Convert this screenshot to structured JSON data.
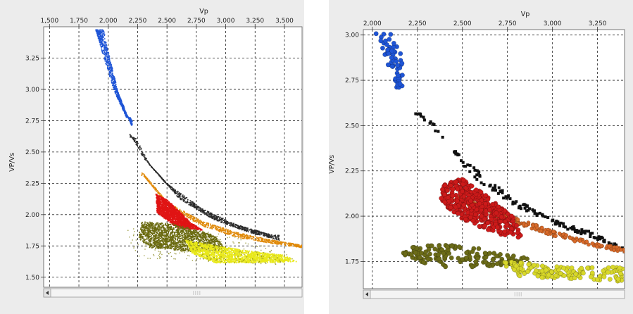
{
  "chart_data": [
    {
      "type": "scatter",
      "title": "",
      "xlabel": "Vp",
      "ylabel": "VP/Vs",
      "xlim": [
        1450,
        3650
      ],
      "ylim": [
        1.42,
        3.5
      ],
      "xticks": [
        "1,500",
        "1,750",
        "2,000",
        "2,250",
        "2,500",
        "2,750",
        "3,000",
        "3,250",
        "3,500"
      ],
      "yticks": [
        "1.50",
        "1.75",
        "2.00",
        "2.25",
        "2.50",
        "2.75",
        "3.00",
        "3.25"
      ],
      "xtick_values": [
        1500,
        1750,
        2000,
        2250,
        2500,
        2750,
        3000,
        3250,
        3500
      ],
      "ytick_values": [
        1.5,
        1.75,
        2.0,
        2.25,
        2.5,
        2.75,
        3.0,
        3.25
      ],
      "grid": true,
      "series": [
        {
          "color": "#1f55d6",
          "kind": "band",
          "upper": [
            [
              1890,
              3.48
            ],
            [
              1960,
              3.25
            ],
            [
              2050,
              2.98
            ],
            [
              2150,
              2.78
            ]
          ],
          "lower": [
            [
              1955,
              3.48
            ],
            [
              2010,
              3.25
            ],
            [
              2080,
              2.98
            ],
            [
              2200,
              2.7
            ]
          ]
        },
        {
          "color": "#2a2a2a",
          "kind": "band",
          "upper": [
            [
              2180,
              2.65
            ],
            [
              2300,
              2.45
            ],
            [
              2500,
              2.25
            ],
            [
              2800,
              2.05
            ],
            [
              3100,
              1.92
            ],
            [
              3400,
              1.84
            ]
          ],
          "lower": [
            [
              2230,
              2.62
            ],
            [
              2350,
              2.4
            ],
            [
              2600,
              2.13
            ],
            [
              2900,
              1.96
            ],
            [
              3200,
              1.86
            ],
            [
              3450,
              1.8
            ]
          ]
        },
        {
          "color": "#e08a0a",
          "kind": "band",
          "upper": [
            [
              2280,
              2.35
            ],
            [
              2500,
              2.1
            ],
            [
              2800,
              1.95
            ],
            [
              3100,
              1.86
            ],
            [
              3400,
              1.8
            ],
            [
              3650,
              1.76
            ]
          ],
          "lower": [
            [
              2300,
              2.31
            ],
            [
              2520,
              2.06
            ],
            [
              2800,
              1.91
            ],
            [
              3100,
              1.82
            ],
            [
              3400,
              1.77
            ],
            [
              3650,
              1.74
            ]
          ]
        },
        {
          "color": "#e01414",
          "kind": "poly",
          "polygon": [
            [
              2400,
              2.17
            ],
            [
              2500,
              2.12
            ],
            [
              2700,
              1.94
            ],
            [
              2800,
              1.88
            ],
            [
              2580,
              1.9
            ],
            [
              2410,
              2.02
            ]
          ]
        },
        {
          "color": "#6b6b12",
          "kind": "poly",
          "polygon": [
            [
              2280,
              1.95
            ],
            [
              2550,
              1.93
            ],
            [
              2900,
              1.84
            ],
            [
              3000,
              1.72
            ],
            [
              2700,
              1.71
            ],
            [
              2350,
              1.74
            ],
            [
              2250,
              1.82
            ]
          ]
        },
        {
          "color": "#e8e81a",
          "kind": "poly",
          "polygon": [
            [
              2650,
              1.8
            ],
            [
              3150,
              1.72
            ],
            [
              3500,
              1.68
            ],
            [
              3600,
              1.63
            ],
            [
              3300,
              1.62
            ],
            [
              2900,
              1.62
            ],
            [
              2700,
              1.7
            ]
          ]
        },
        {
          "color": "#8a8a20",
          "kind": "sparse",
          "polygon": [
            [
              2150,
              1.92
            ],
            [
              2900,
              1.88
            ],
            [
              3600,
              1.66
            ],
            [
              3400,
              1.6
            ],
            [
              2200,
              1.66
            ]
          ]
        }
      ]
    },
    {
      "type": "scatter",
      "title": "",
      "xlabel": "Vp",
      "ylabel": "VP/Vs",
      "xlim": [
        1950,
        3400
      ],
      "ylim": [
        1.6,
        3.03
      ],
      "xticks": [
        "2,000",
        "2,250",
        "2,500",
        "2,750",
        "3,000",
        "3,250"
      ],
      "yticks": [
        "1.75",
        "2.00",
        "2.25",
        "2.50",
        "2.75",
        "3.00"
      ],
      "xtick_values": [
        2000,
        2250,
        2500,
        2750,
        3000,
        3250
      ],
      "ytick_values": [
        1.75,
        2.0,
        2.25,
        2.5,
        2.75,
        3.0
      ],
      "grid": true,
      "series": [
        {
          "color": "#1f55d6",
          "kind": "dots",
          "polygon": [
            [
              2020,
              3.01
            ],
            [
              2100,
              3.01
            ],
            [
              2160,
              2.9
            ],
            [
              2175,
              2.72
            ],
            [
              2140,
              2.7
            ],
            [
              2080,
              2.85
            ],
            [
              2000,
              3.03
            ]
          ]
        },
        {
          "color": "#111111",
          "kind": "squares",
          "upper": [
            [
              2240,
              2.59
            ],
            [
              2350,
              2.5
            ],
            [
              2500,
              2.32
            ],
            [
              2750,
              2.12
            ],
            [
              3000,
              1.98
            ],
            [
              3200,
              1.92
            ],
            [
              3400,
              1.82
            ]
          ],
          "lower": [
            [
              2260,
              2.56
            ],
            [
              2400,
              2.42
            ],
            [
              2550,
              2.22
            ],
            [
              2800,
              2.05
            ],
            [
              3050,
              1.94
            ],
            [
              3250,
              1.87
            ],
            [
              3400,
              1.8
            ]
          ]
        },
        {
          "color": "#d86a2a",
          "kind": "band",
          "upper": [
            [
              2400,
              2.14
            ],
            [
              2600,
              2.07
            ],
            [
              2800,
              1.99
            ],
            [
              3000,
              1.92
            ],
            [
              3200,
              1.86
            ],
            [
              3400,
              1.82
            ]
          ],
          "lower": [
            [
              2420,
              2.1
            ],
            [
              2600,
              2.03
            ],
            [
              2800,
              1.96
            ],
            [
              3000,
              1.89
            ],
            [
              3200,
              1.84
            ],
            [
              3400,
              1.8
            ]
          ]
        },
        {
          "color": "#cc1a1a",
          "kind": "dots",
          "polygon": [
            [
              2390,
              2.17
            ],
            [
              2500,
              2.21
            ],
            [
              2650,
              2.1
            ],
            [
              2780,
              2.0
            ],
            [
              2830,
              1.88
            ],
            [
              2700,
              1.9
            ],
            [
              2500,
              1.98
            ],
            [
              2380,
              2.08
            ]
          ]
        },
        {
          "color": "#6b6b18",
          "kind": "dots",
          "polygon": [
            [
              2160,
              1.84
            ],
            [
              2500,
              1.84
            ],
            [
              2800,
              1.78
            ],
            [
              2900,
              1.76
            ],
            [
              2700,
              1.72
            ],
            [
              2400,
              1.72
            ],
            [
              2170,
              1.76
            ]
          ]
        },
        {
          "color": "#d8d82a",
          "kind": "dots",
          "polygon": [
            [
              2700,
              1.76
            ],
            [
              3050,
              1.72
            ],
            [
              3400,
              1.72
            ],
            [
              3400,
              1.64
            ],
            [
              3100,
              1.65
            ],
            [
              2800,
              1.67
            ]
          ]
        }
      ]
    }
  ]
}
